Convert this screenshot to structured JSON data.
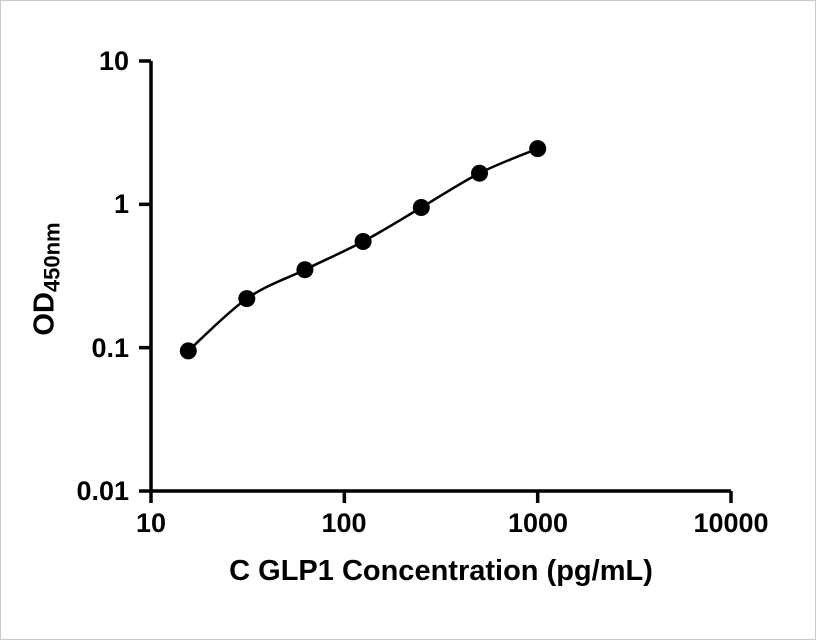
{
  "figure": {
    "x_axis_title": "C GLP1 Concentration (pg/mL)",
    "y_axis_title_main": "OD",
    "y_axis_title_sub": "450nm"
  },
  "chart_data": {
    "type": "scatter",
    "title": "",
    "xlabel": "C GLP1 Concentration (pg/mL)",
    "ylabel": "OD450nm",
    "xscale": "log",
    "yscale": "log",
    "xlim": [
      10,
      10000
    ],
    "ylim": [
      0.01,
      10
    ],
    "x": [
      15.6,
      31.3,
      62.5,
      125,
      250,
      500,
      1000
    ],
    "y": [
      0.095,
      0.22,
      0.35,
      0.55,
      0.95,
      1.65,
      2.45
    ],
    "x_tick_labels": [
      "10",
      "100",
      "1000",
      "10000"
    ],
    "x_tick_values": [
      10,
      100,
      1000,
      10000
    ],
    "y_tick_labels": [
      "10",
      "1",
      "0.1",
      "0.01"
    ],
    "y_tick_values": [
      10,
      1,
      0.1,
      0.01
    ],
    "line_color": "#000000",
    "marker_color": "#000000",
    "axis_color": "#000000",
    "grid": false,
    "legend": "none",
    "curve_style": "smooth fit line through points"
  }
}
